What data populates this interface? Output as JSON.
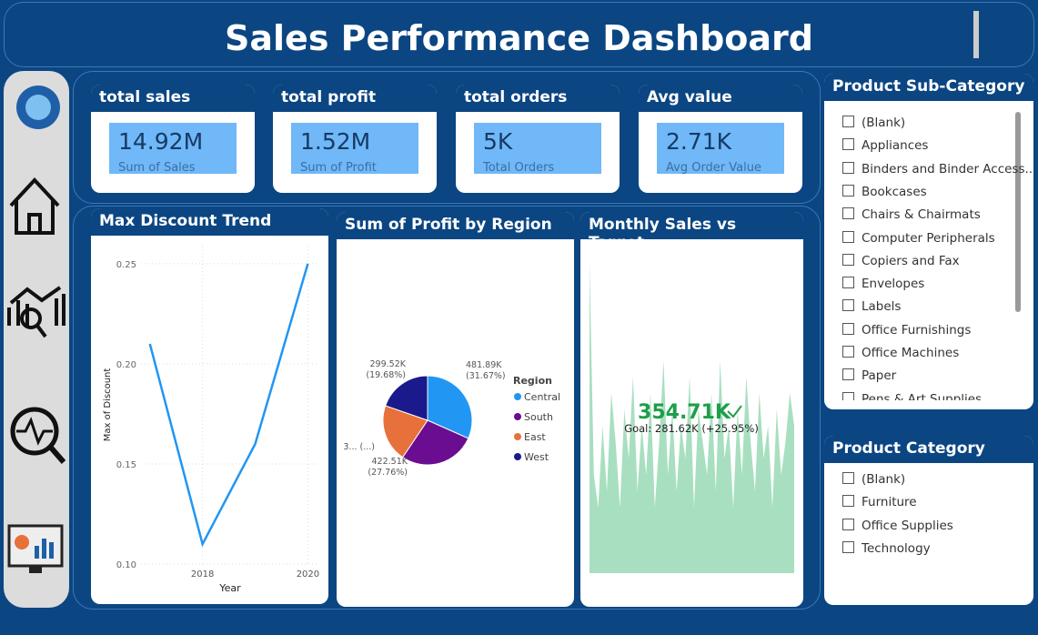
{
  "header": {
    "title": "Sales Performance Dashboard"
  },
  "kpis": [
    {
      "title": "total sales",
      "value": "14.92M",
      "label": "Sum of Sales"
    },
    {
      "title": "total profit",
      "value": "1.52M",
      "label": "Sum of Profit"
    },
    {
      "title": "total orders",
      "value": "5K",
      "label": "Total Orders"
    },
    {
      "title": "Avg value",
      "value": "2.71K",
      "label": "Avg Order Value"
    }
  ],
  "discount_chart": {
    "type": "line",
    "title": "Max Discount Trend",
    "x_label": "Year",
    "y_label": "Max of Discount",
    "x": [
      2017,
      2018,
      2019,
      2020
    ],
    "values": [
      0.21,
      0.11,
      0.16,
      0.25
    ],
    "color": "#2196f3",
    "xlim": [
      2016.4,
      2020.2
    ],
    "xticks": [
      2018,
      2020
    ],
    "ylim": [
      0.0955,
      0.259
    ],
    "yticks": [
      {
        "value": 0.1,
        "label": "0.10"
      },
      0.15,
      {
        "value": 0.2,
        "label": "0.20"
      },
      0.25
    ],
    "grid": true
  },
  "region_chart": {
    "type": "pie",
    "title": "Sum of Profit by Region",
    "legend_title": "Region",
    "categories": [
      "Central",
      "South",
      "East",
      "West"
    ],
    "values": [
      481.89,
      422.51,
      318,
      299.52
    ],
    "value_labels": [
      "481.89K (31.67%)",
      "422.51K (27.76%)",
      "3... (...)",
      "299.52K (19.68%)"
    ],
    "colors": [
      "#2196f3",
      "#6a0d91",
      "#e8703a",
      "#1a1a8c"
    ]
  },
  "sales_chart": {
    "type": "area",
    "title": "Monthly Sales vs Target",
    "kpi_value": "354.71K",
    "goal": "Goal: 281.62K (+25.95%)",
    "color": "#a8dfc0",
    "ylim": [
      0,
      100
    ],
    "values": [
      95,
      30,
      20,
      45,
      25,
      55,
      40,
      20,
      50,
      35,
      60,
      25,
      45,
      30,
      55,
      20,
      40,
      65,
      30,
      50,
      25,
      45,
      35,
      60,
      20,
      50,
      40,
      30,
      55,
      25,
      65,
      35,
      45,
      20,
      50,
      30,
      60,
      40,
      25,
      55,
      35,
      45,
      20,
      50,
      30,
      40,
      55,
      45
    ]
  },
  "subcategory_slicer": {
    "title": "Product Sub-Category",
    "items": [
      "(Blank)",
      "Appliances",
      "Binders and Binder Access...",
      "Bookcases",
      "Chairs & Chairmats",
      "Computer Peripherals",
      "Copiers and Fax",
      "Envelopes",
      "Labels",
      "Office Furnishings",
      "Office Machines",
      "Paper",
      "Pens & Art Supplies"
    ]
  },
  "category_slicer": {
    "title": "Product Category",
    "items": [
      "(Blank)",
      "Furniture",
      "Office Supplies",
      "Technology"
    ]
  }
}
